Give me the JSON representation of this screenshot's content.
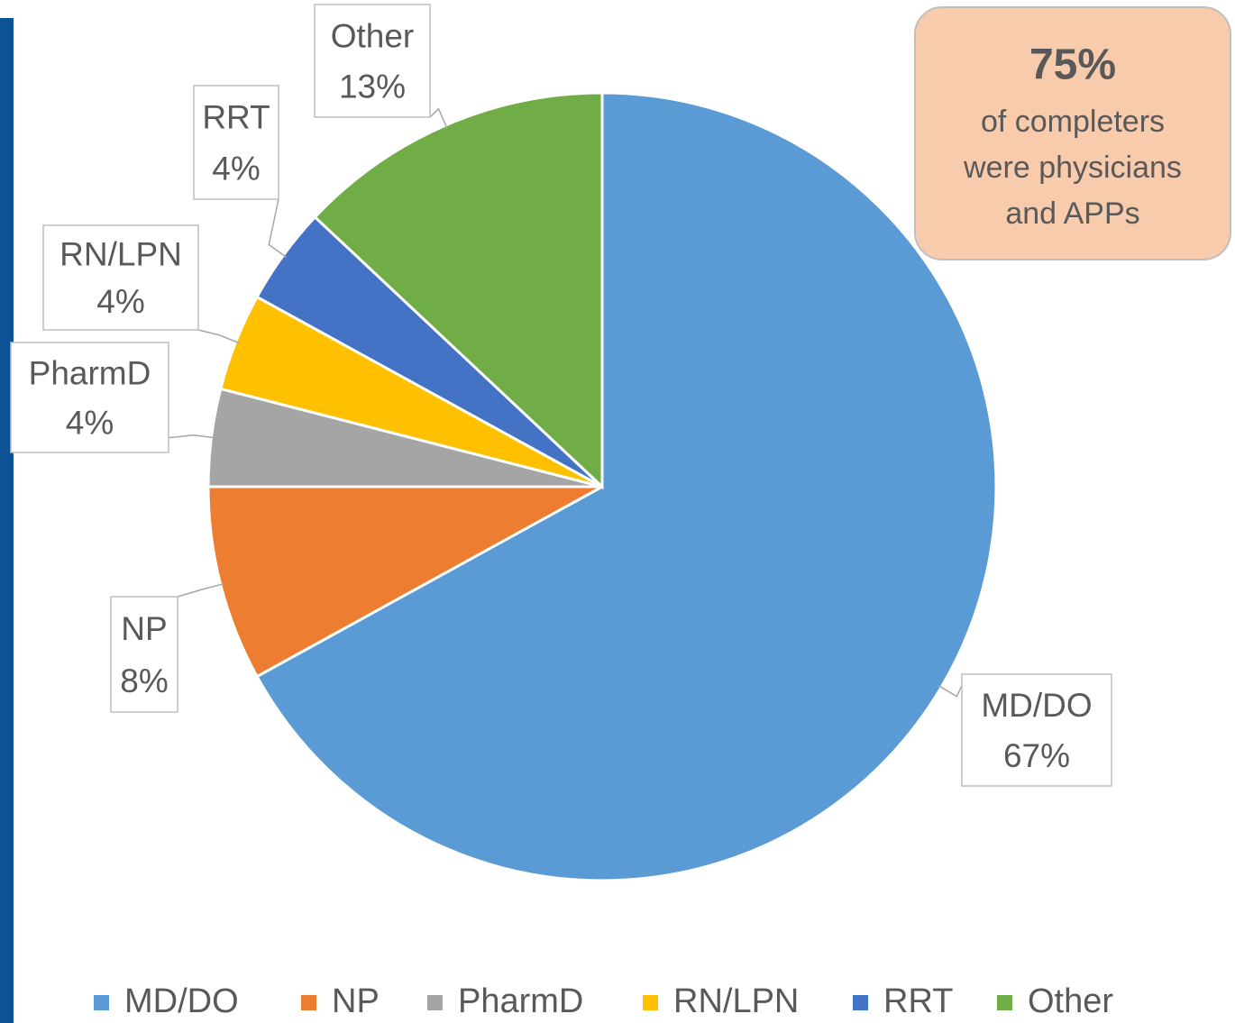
{
  "chart_data": {
    "type": "pie",
    "categories": [
      "MD/DO",
      "NP",
      "PharmD",
      "RN/LPN",
      "RRT",
      "Other"
    ],
    "values": [
      67,
      8,
      4,
      4,
      4,
      13
    ],
    "value_labels": [
      "67%",
      "8%",
      "4%",
      "4%",
      "4%",
      "13%"
    ],
    "colors": [
      "#5b9bd5",
      "#ed7d31",
      "#a5a5a5",
      "#ffc000",
      "#4472c4",
      "#70ad47"
    ],
    "legend": "bottom",
    "annotation": {
      "headline": "75%",
      "lines": [
        "of completers",
        "were physicians",
        "and APPs"
      ]
    }
  }
}
